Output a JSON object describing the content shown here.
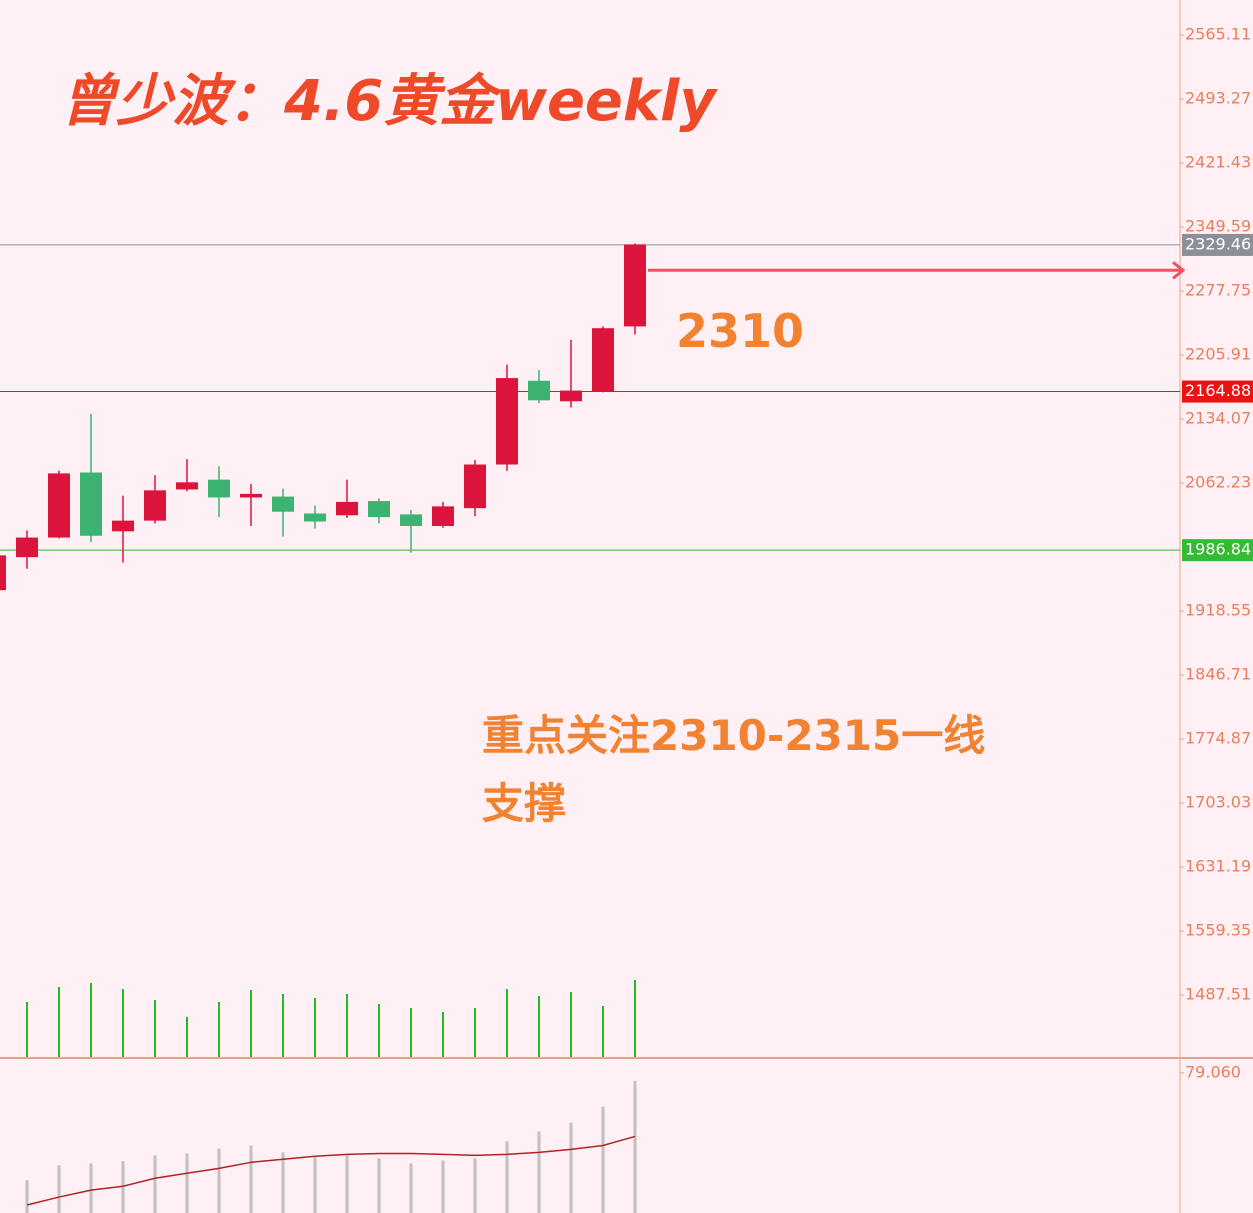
{
  "chart_data": [
    {
      "type": "candlestick",
      "title": "曾少波：4.6黄金weekly",
      "annotations": [
        "2310",
        "重点关注2310-2315一线支撑"
      ],
      "open": [
        1942,
        1979,
        2001,
        2074,
        2008,
        2020,
        2055,
        2066,
        2046,
        2047,
        2028,
        2026,
        2042,
        2027,
        2014,
        2034,
        2083,
        2177,
        2154,
        2165,
        2238
      ],
      "close": [
        1981,
        2001,
        2073,
        2003,
        2020,
        2054,
        2063,
        2046,
        2050,
        2030,
        2019,
        2041,
        2024,
        2014,
        2036,
        2083,
        2180,
        2155,
        2166,
        2236,
        2330
      ],
      "high": [
        1984,
        2009,
        2076,
        2140,
        2048,
        2071,
        2089,
        2081,
        2061,
        2056,
        2037,
        2066,
        2045,
        2032,
        2041,
        2088,
        2195,
        2189,
        2223,
        2238,
        2331
      ],
      "low": [
        1940,
        1966,
        2000,
        1996,
        1973,
        2017,
        2053,
        2024,
        2014,
        2002,
        2011,
        2023,
        2017,
        1984,
        2012,
        2025,
        2076,
        2152,
        2147,
        2164,
        2229
      ],
      "up_color": "#dc143c",
      "down_color": "#3cb371",
      "volume": [
        null,
        55,
        70,
        74,
        68,
        57,
        40,
        55,
        67,
        63,
        59,
        63,
        53,
        49,
        45,
        49,
        68,
        61,
        65,
        51,
        77
      ],
      "volume_color": "#22bb22",
      "ylim": [
        1416.8,
        2604.4
      ],
      "yticks": [
        2565.11,
        2493.27,
        2421.43,
        2349.59,
        2277.75,
        2205.91,
        2134.07,
        2062.23,
        1918.55,
        1846.71,
        1774.87,
        1703.03,
        1631.19,
        1559.35,
        1487.51
      ],
      "levels": [
        {
          "value": 2329.46,
          "color": "#8a8f98"
        },
        {
          "value": 2164.88,
          "color": "#ee1111"
        },
        {
          "value": 1986.84,
          "color": "#33bb33"
        }
      ],
      "arrow": {
        "value": 2301,
        "color": "#f05060"
      }
    },
    {
      "type": "bar_line",
      "values": [
        null,
        18.5,
        26.9,
        28.0,
        29.2,
        32.5,
        33.6,
        36.4,
        38.1,
        34.2,
        32.5,
        32.5,
        30.8,
        28.0,
        29.7,
        30.8,
        40.4,
        46.0,
        51.0,
        60.0,
        74.6
      ],
      "line": [
        null,
        4.5,
        9.0,
        12.9,
        15.1,
        19.6,
        22.4,
        25.2,
        28.6,
        30.3,
        32.0,
        33.1,
        33.6,
        33.6,
        33.1,
        32.5,
        33.1,
        34.2,
        35.9,
        38.1,
        43.2
      ],
      "color": "#c0c0c0",
      "line_color": "#b22222",
      "ylim": [
        0,
        85.2
      ],
      "yticks": [
        {
          "value": 79.06,
          "label": "79.060"
        }
      ]
    }
  ]
}
